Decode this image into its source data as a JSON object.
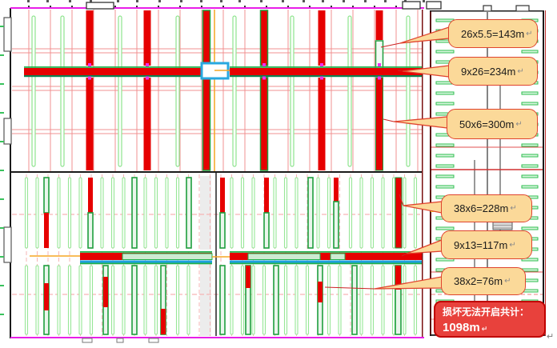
{
  "drawing": {
    "callouts": [
      {
        "label": "26x5.5=143m"
      },
      {
        "label": "9x26=234m"
      },
      {
        "label": "50x6=300m"
      },
      {
        "label": "38x6=228m"
      },
      {
        "label": "9x13=117m"
      },
      {
        "label": "38x2=76m"
      }
    ],
    "return_mark": "↵",
    "total": {
      "label": "损坏无法开启共计：",
      "value": "1098m"
    },
    "colors": {
      "damaged_red": "#E60000",
      "intact_green": "#21B14C",
      "callout_bg": "#FBD999",
      "callout_border": "#E0442E",
      "total_bg": "#E8413C",
      "grid_red": "#F09090",
      "axis_orange": "#F5A623",
      "edge_magenta": "#E81EE8",
      "water_blue": "#1FA0E0"
    }
  }
}
